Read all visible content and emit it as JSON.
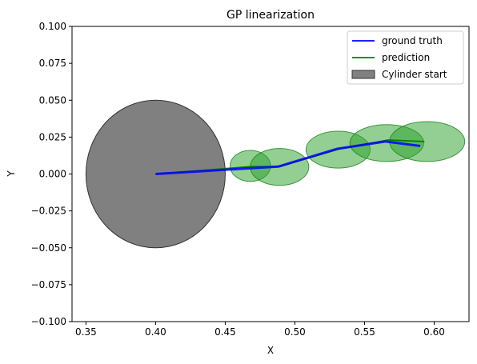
{
  "chart_data": {
    "type": "line",
    "title": "GP linearization",
    "xlabel": "X",
    "ylabel": "Y",
    "xlim": [
      0.34,
      0.625
    ],
    "ylim": [
      -0.1,
      0.1
    ],
    "grid": false,
    "legend_position": "top-right",
    "x_ticks": [
      0.35,
      0.4,
      0.45,
      0.5,
      0.55,
      0.6
    ],
    "x_tick_labels": [
      "0.35",
      "0.40",
      "0.45",
      "0.50",
      "0.55",
      "0.60"
    ],
    "y_ticks": [
      0.1,
      0.075,
      0.05,
      0.025,
      0.0,
      -0.025,
      -0.05,
      -0.075,
      -0.1
    ],
    "y_tick_labels": [
      "0.100",
      "0.075",
      "0.050",
      "0.025",
      "0.000",
      "−0.025",
      "−0.050",
      "−0.075",
      "−0.100"
    ],
    "series": [
      {
        "name": "ground truth",
        "color": "#0000ff",
        "x": [
          0.4,
          0.488,
          0.53,
          0.565,
          0.59
        ],
        "y": [
          0.0,
          0.005,
          0.017,
          0.022,
          0.019
        ]
      },
      {
        "name": "prediction",
        "color": "#008000",
        "x": [
          0.4,
          0.468,
          0.489,
          0.532,
          0.567,
          0.593
        ],
        "y": [
          0.0,
          0.005,
          0.005,
          0.017,
          0.023,
          0.022
        ]
      }
    ],
    "uncertainty_ellipses": {
      "color": "#2ca02c",
      "opacity": 0.6,
      "items": [
        {
          "cx": 0.468,
          "cy": 0.0055,
          "rx": 0.0145,
          "ry": 0.0105
        },
        {
          "cx": 0.489,
          "cy": 0.0048,
          "rx": 0.021,
          "ry": 0.0125
        },
        {
          "cx": 0.531,
          "cy": 0.0165,
          "rx": 0.023,
          "ry": 0.0125
        },
        {
          "cx": 0.566,
          "cy": 0.021,
          "rx": 0.0265,
          "ry": 0.0125
        },
        {
          "cx": 0.595,
          "cy": 0.022,
          "rx": 0.027,
          "ry": 0.0135
        }
      ]
    },
    "cylinder": {
      "name": "Cylinder start",
      "color": "#808080",
      "cx": 0.4,
      "cy": 0.0,
      "r": 0.05
    }
  }
}
